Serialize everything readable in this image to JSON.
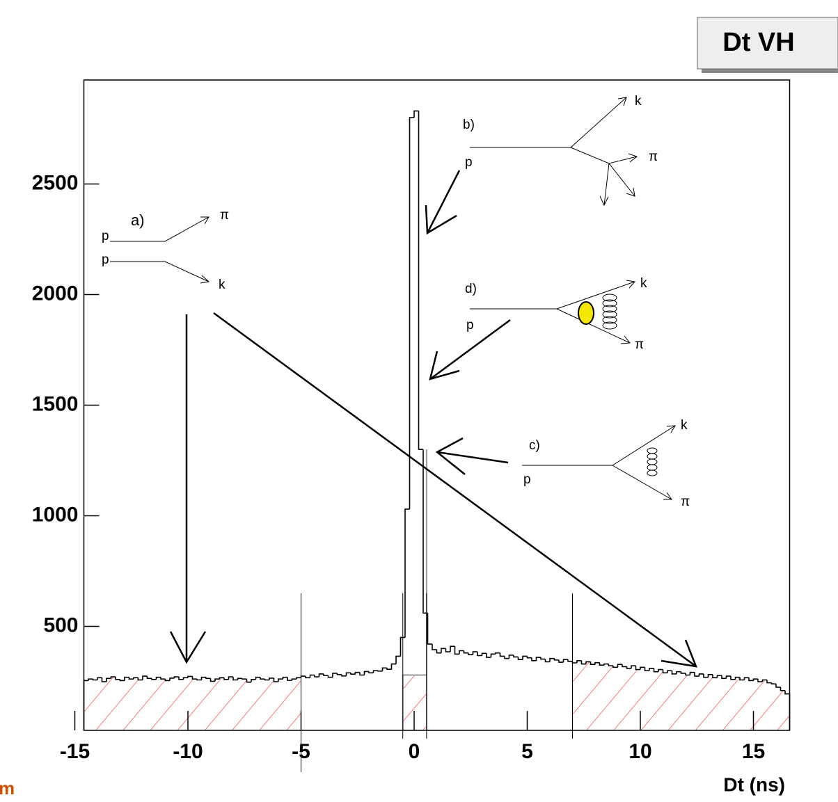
{
  "chart_data": {
    "type": "histogram",
    "title": "Dt VH",
    "x_label": "Dt  (ns)",
    "footer": "m",
    "bins": [
      -14.6,
      -14.4,
      -14.2,
      -14,
      -13.8,
      -13.6,
      -13.4,
      -13.2,
      -13,
      -12.8,
      -12.6,
      -12.4,
      -12.2,
      -12,
      -11.8,
      -11.6,
      -11.4,
      -11.2,
      -11,
      -10.8,
      -10.6,
      -10.4,
      -10.2,
      -10,
      -9.8,
      -9.6,
      -9.4,
      -9.2,
      -9,
      -8.8,
      -8.6,
      -8.4,
      -8.2,
      -8,
      -7.8,
      -7.6,
      -7.4,
      -7.2,
      -7,
      -6.8,
      -6.6,
      -6.4,
      -6.2,
      -6,
      -5.8,
      -5.6,
      -5.4,
      -5.2,
      -5,
      -4.8,
      -4.6,
      -4.4,
      -4.2,
      -4,
      -3.8,
      -3.6,
      -3.4,
      -3.2,
      -3,
      -2.8,
      -2.6,
      -2.4,
      -2.2,
      -2,
      -1.8,
      -1.6,
      -1.4,
      -1.2,
      -1,
      -0.8,
      -0.6,
      -0.4,
      -0.2,
      0,
      0.2,
      0.4,
      0.6,
      0.8,
      1,
      1.2,
      1.4,
      1.6,
      1.8,
      2,
      2.2,
      2.4,
      2.6,
      2.8,
      3,
      3.2,
      3.4,
      3.6,
      3.8,
      4,
      4.2,
      4.4,
      4.6,
      4.8,
      5,
      5.2,
      5.4,
      5.6,
      5.8,
      6,
      6.2,
      6.4,
      6.6,
      6.8,
      7,
      7.2,
      7.4,
      7.6,
      7.8,
      8,
      8.2,
      8.4,
      8.6,
      8.8,
      9,
      9.2,
      9.4,
      9.6,
      9.8,
      10,
      10.2,
      10.4,
      10.6,
      10.8,
      11,
      11.2,
      11.4,
      11.6,
      11.8,
      12,
      12.2,
      12.4,
      12.6,
      12.8,
      13,
      13.2,
      13.4,
      13.6,
      13.8,
      14,
      14.2,
      14.4,
      14.6,
      14.8,
      15,
      15.2,
      15.4,
      15.6,
      15.8,
      16,
      16.2,
      16.4,
      16.6
    ],
    "values": [
      255,
      262,
      258,
      268,
      250,
      265,
      272,
      260,
      255,
      270,
      262,
      268,
      258,
      275,
      265,
      260,
      270,
      262,
      255,
      266,
      272,
      260,
      268,
      274,
      262,
      258,
      270,
      265,
      252,
      262,
      268,
      260,
      272,
      258,
      265,
      262,
      248,
      260,
      270,
      262,
      258,
      266,
      250,
      262,
      270,
      256,
      262,
      268,
      275,
      268,
      280,
      272,
      285,
      278,
      270,
      288,
      282,
      276,
      290,
      284,
      292,
      280,
      296,
      290,
      300,
      298,
      312,
      306,
      330,
      365,
      450,
      1030,
      2800,
      2830,
      1300,
      560,
      420,
      395,
      380,
      400,
      385,
      410,
      375,
      390,
      380,
      372,
      385,
      368,
      378,
      360,
      375,
      380,
      365,
      355,
      370,
      362,
      350,
      365,
      358,
      345,
      360,
      352,
      340,
      355,
      348,
      338,
      350,
      342,
      335,
      345,
      330,
      340,
      328,
      336,
      325,
      330,
      322,
      315,
      328,
      318,
      310,
      322,
      305,
      315,
      300,
      310,
      295,
      305,
      290,
      300,
      285,
      295,
      288,
      280,
      292,
      275,
      285,
      270,
      282,
      268,
      278,
      265,
      275,
      260,
      270,
      258,
      268,
      255,
      262,
      250,
      258,
      245,
      240,
      225,
      210,
      195
    ],
    "color": "#000000",
    "hatch_color": "#ff3030",
    "sidebands": [
      {
        "from": -14.6,
        "to": -5
      },
      {
        "from": 7,
        "to": 16.6
      }
    ],
    "window": {
      "from": -0.5,
      "to": 0.55,
      "level": 280,
      "top": 1300
    },
    "vlines": [
      -5,
      -0.5,
      0.55,
      7
    ],
    "xlim": [
      -14.6,
      16.6
    ],
    "ylim": [
      30,
      2970
    ],
    "xticks": [
      -15,
      -10,
      -5,
      0,
      5,
      10,
      15
    ],
    "yticks": [
      500,
      1000,
      1500,
      2000,
      2500
    ],
    "diagrams": [
      {
        "label": "a)",
        "texts": [
          "p",
          "p",
          "π",
          "k"
        ]
      },
      {
        "label": "b)",
        "texts": [
          "p",
          "k",
          "π"
        ]
      },
      {
        "label": "d)",
        "texts": [
          "p",
          "k",
          "π"
        ]
      },
      {
        "label": "c)",
        "texts": [
          "p",
          "k",
          "π"
        ]
      }
    ]
  }
}
